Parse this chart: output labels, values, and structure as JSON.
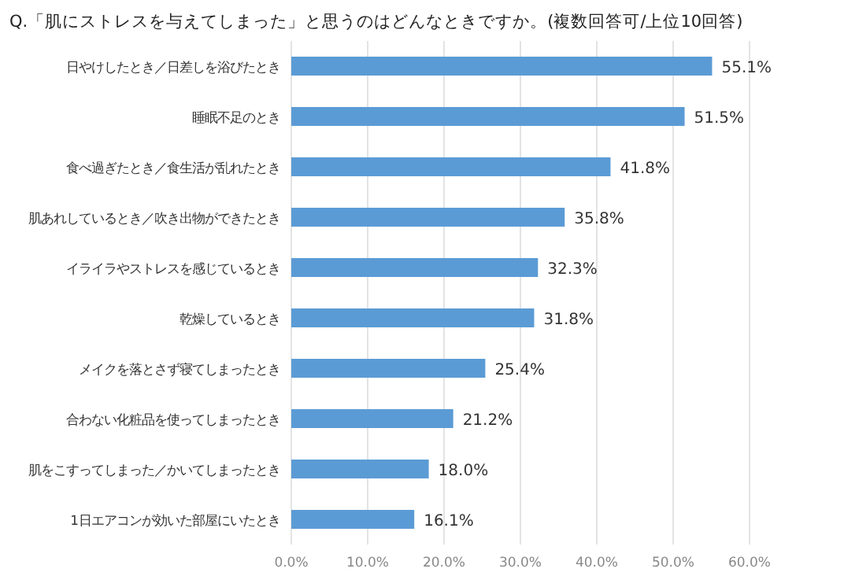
{
  "chart_data": {
    "type": "bar",
    "orientation": "horizontal",
    "title": "Q.「肌にストレスを与えてしまった」と思うのはどんなときですか。(複数回答可/上位10回答)",
    "categories": [
      "日やけしたとき／日差しを浴びたとき",
      "睡眠不足のとき",
      "食べ過ぎたとき／食生活が乱れたとき",
      "肌あれしているとき／吹き出物ができたとき",
      "イライラやストレスを感じているとき",
      "乾燥しているとき",
      "メイクを落とさず寝てしまったとき",
      "合わない化粧品を使ってしまったとき",
      "肌をこすってしまった／かいてしまったとき",
      "1日エアコンが効いた部屋にいたとき"
    ],
    "values": [
      55.1,
      51.5,
      41.8,
      35.8,
      32.3,
      31.8,
      25.4,
      21.2,
      18.0,
      16.1
    ],
    "value_labels": [
      "55.1%",
      "51.5%",
      "41.8%",
      "35.8%",
      "32.3%",
      "31.8%",
      "25.4%",
      "21.2%",
      "18.0%",
      "16.1%"
    ],
    "color": "#5b9bd5",
    "xlim": [
      0,
      60
    ],
    "xticks": [
      {
        "value": 0,
        "label": "0.0%"
      },
      {
        "value": 10,
        "label": "10.0%"
      },
      {
        "value": 20,
        "label": "20.0%"
      },
      {
        "value": 30,
        "label": "30.0%"
      },
      {
        "value": 40,
        "label": "40.0%"
      },
      {
        "value": 50,
        "label": "50.0%"
      },
      {
        "value": 60,
        "label": "60.0%"
      }
    ],
    "grid": "x"
  }
}
